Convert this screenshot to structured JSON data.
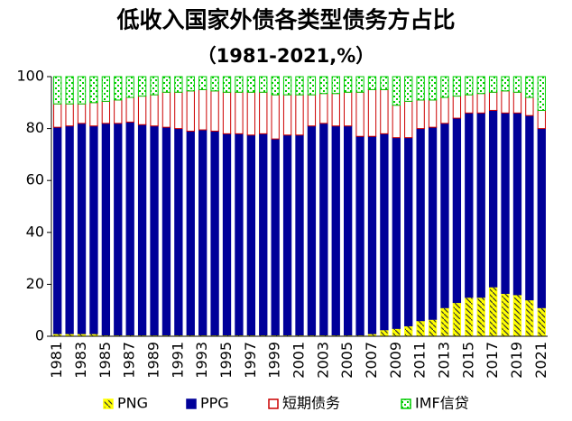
{
  "chart_data": {
    "type": "stacked_bar",
    "title": "低收入国家外债各类型债务方占比",
    "subtitle": "（1981-2021,%）",
    "categories": [
      "1981",
      null,
      "1983",
      null,
      "1985",
      null,
      "1987",
      null,
      "1989",
      null,
      "1991",
      null,
      "1993",
      null,
      "1995",
      null,
      "1997",
      null,
      "1999",
      null,
      "2001",
      null,
      "2003",
      null,
      "2005",
      null,
      "2007",
      null,
      "2009",
      null,
      "2011",
      null,
      "2013",
      null,
      "2015",
      null,
      "2017",
      null,
      "2019",
      null,
      "2021"
    ],
    "series": [
      {
        "name": "PNG",
        "color": "#ffff00",
        "values": [
          1,
          1,
          1,
          1,
          0.5,
          0.5,
          0.5,
          0.5,
          0.5,
          0.5,
          0.5,
          0.5,
          0.5,
          0.5,
          0.5,
          0.5,
          0.5,
          0.5,
          0.5,
          0.5,
          0.5,
          0.5,
          0.5,
          0.5,
          0.5,
          0.5,
          1,
          2.5,
          3,
          4,
          6,
          6.5,
          11,
          13,
          15,
          15,
          19,
          16.5,
          16,
          14,
          11
        ]
      },
      {
        "name": "PPG",
        "color": "#000099",
        "values": [
          79.5,
          80,
          81,
          80,
          81.5,
          81.5,
          82,
          81,
          80.5,
          80,
          79.5,
          78.5,
          79,
          78.5,
          77.5,
          77.5,
          77,
          77.5,
          75.5,
          77,
          77,
          80.5,
          81.5,
          80.5,
          80.5,
          76.5,
          76,
          75.5,
          73.5,
          72.5,
          74,
          74,
          71,
          71,
          71,
          71,
          68,
          69.5,
          70,
          71,
          69
        ]
      },
      {
        "name": "短期债务",
        "color": "#cc0000",
        "values": [
          9,
          8.5,
          7.5,
          9,
          8.5,
          9,
          9.5,
          11,
          12,
          13.5,
          14,
          15.5,
          15.5,
          15.5,
          16,
          16,
          16.5,
          16,
          17,
          15.5,
          15.5,
          12,
          11.5,
          12.5,
          13,
          17,
          18,
          17,
          12.5,
          14,
          11,
          10.5,
          10,
          8.5,
          7,
          7.5,
          7,
          8.5,
          8,
          7,
          7
        ]
      },
      {
        "name": "IMF信贷",
        "color": "#00cc00",
        "values": [
          10.5,
          10.5,
          10.5,
          10,
          9.5,
          9,
          8,
          7.5,
          7,
          6,
          6,
          5.5,
          5,
          5.5,
          6,
          6,
          6,
          6,
          7,
          7,
          7,
          7,
          6.5,
          6.5,
          6,
          6,
          5,
          5,
          11,
          9.5,
          9,
          9,
          8,
          7.5,
          7,
          6.5,
          6,
          5.5,
          6,
          8,
          13
        ]
      }
    ],
    "ylim": [
      0,
      100
    ],
    "yticks": [
      0,
      20,
      40,
      60,
      80,
      100
    ],
    "grid": false,
    "legend": "bottom"
  }
}
